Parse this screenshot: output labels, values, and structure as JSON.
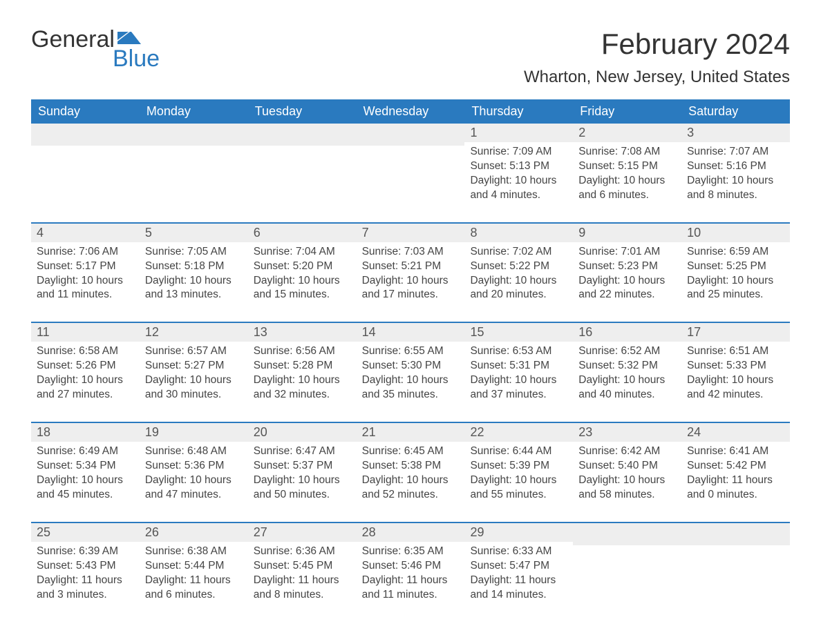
{
  "logo": {
    "word1": "General",
    "word2": "Blue",
    "text_color": "#333333",
    "accent_color": "#2a7abf"
  },
  "header": {
    "month_title": "February 2024",
    "location": "Wharton, New Jersey, United States"
  },
  "colors": {
    "header_bg": "#2a7abf",
    "header_text": "#ffffff",
    "day_number_bg": "#eeeeee",
    "row_border": "#2a7abf",
    "body_text": "#444444",
    "background": "#ffffff"
  },
  "typography": {
    "title_fontsize": 42,
    "location_fontsize": 24,
    "weekday_fontsize": 18,
    "daynum_fontsize": 18,
    "content_fontsize": 15.5
  },
  "calendar": {
    "weekdays": [
      "Sunday",
      "Monday",
      "Tuesday",
      "Wednesday",
      "Thursday",
      "Friday",
      "Saturday"
    ],
    "weeks": [
      [
        null,
        null,
        null,
        null,
        {
          "day": "1",
          "sunrise": "Sunrise: 7:09 AM",
          "sunset": "Sunset: 5:13 PM",
          "daylight": "Daylight: 10 hours and 4 minutes."
        },
        {
          "day": "2",
          "sunrise": "Sunrise: 7:08 AM",
          "sunset": "Sunset: 5:15 PM",
          "daylight": "Daylight: 10 hours and 6 minutes."
        },
        {
          "day": "3",
          "sunrise": "Sunrise: 7:07 AM",
          "sunset": "Sunset: 5:16 PM",
          "daylight": "Daylight: 10 hours and 8 minutes."
        }
      ],
      [
        {
          "day": "4",
          "sunrise": "Sunrise: 7:06 AM",
          "sunset": "Sunset: 5:17 PM",
          "daylight": "Daylight: 10 hours and 11 minutes."
        },
        {
          "day": "5",
          "sunrise": "Sunrise: 7:05 AM",
          "sunset": "Sunset: 5:18 PM",
          "daylight": "Daylight: 10 hours and 13 minutes."
        },
        {
          "day": "6",
          "sunrise": "Sunrise: 7:04 AM",
          "sunset": "Sunset: 5:20 PM",
          "daylight": "Daylight: 10 hours and 15 minutes."
        },
        {
          "day": "7",
          "sunrise": "Sunrise: 7:03 AM",
          "sunset": "Sunset: 5:21 PM",
          "daylight": "Daylight: 10 hours and 17 minutes."
        },
        {
          "day": "8",
          "sunrise": "Sunrise: 7:02 AM",
          "sunset": "Sunset: 5:22 PM",
          "daylight": "Daylight: 10 hours and 20 minutes."
        },
        {
          "day": "9",
          "sunrise": "Sunrise: 7:01 AM",
          "sunset": "Sunset: 5:23 PM",
          "daylight": "Daylight: 10 hours and 22 minutes."
        },
        {
          "day": "10",
          "sunrise": "Sunrise: 6:59 AM",
          "sunset": "Sunset: 5:25 PM",
          "daylight": "Daylight: 10 hours and 25 minutes."
        }
      ],
      [
        {
          "day": "11",
          "sunrise": "Sunrise: 6:58 AM",
          "sunset": "Sunset: 5:26 PM",
          "daylight": "Daylight: 10 hours and 27 minutes."
        },
        {
          "day": "12",
          "sunrise": "Sunrise: 6:57 AM",
          "sunset": "Sunset: 5:27 PM",
          "daylight": "Daylight: 10 hours and 30 minutes."
        },
        {
          "day": "13",
          "sunrise": "Sunrise: 6:56 AM",
          "sunset": "Sunset: 5:28 PM",
          "daylight": "Daylight: 10 hours and 32 minutes."
        },
        {
          "day": "14",
          "sunrise": "Sunrise: 6:55 AM",
          "sunset": "Sunset: 5:30 PM",
          "daylight": "Daylight: 10 hours and 35 minutes."
        },
        {
          "day": "15",
          "sunrise": "Sunrise: 6:53 AM",
          "sunset": "Sunset: 5:31 PM",
          "daylight": "Daylight: 10 hours and 37 minutes."
        },
        {
          "day": "16",
          "sunrise": "Sunrise: 6:52 AM",
          "sunset": "Sunset: 5:32 PM",
          "daylight": "Daylight: 10 hours and 40 minutes."
        },
        {
          "day": "17",
          "sunrise": "Sunrise: 6:51 AM",
          "sunset": "Sunset: 5:33 PM",
          "daylight": "Daylight: 10 hours and 42 minutes."
        }
      ],
      [
        {
          "day": "18",
          "sunrise": "Sunrise: 6:49 AM",
          "sunset": "Sunset: 5:34 PM",
          "daylight": "Daylight: 10 hours and 45 minutes."
        },
        {
          "day": "19",
          "sunrise": "Sunrise: 6:48 AM",
          "sunset": "Sunset: 5:36 PM",
          "daylight": "Daylight: 10 hours and 47 minutes."
        },
        {
          "day": "20",
          "sunrise": "Sunrise: 6:47 AM",
          "sunset": "Sunset: 5:37 PM",
          "daylight": "Daylight: 10 hours and 50 minutes."
        },
        {
          "day": "21",
          "sunrise": "Sunrise: 6:45 AM",
          "sunset": "Sunset: 5:38 PM",
          "daylight": "Daylight: 10 hours and 52 minutes."
        },
        {
          "day": "22",
          "sunrise": "Sunrise: 6:44 AM",
          "sunset": "Sunset: 5:39 PM",
          "daylight": "Daylight: 10 hours and 55 minutes."
        },
        {
          "day": "23",
          "sunrise": "Sunrise: 6:42 AM",
          "sunset": "Sunset: 5:40 PM",
          "daylight": "Daylight: 10 hours and 58 minutes."
        },
        {
          "day": "24",
          "sunrise": "Sunrise: 6:41 AM",
          "sunset": "Sunset: 5:42 PM",
          "daylight": "Daylight: 11 hours and 0 minutes."
        }
      ],
      [
        {
          "day": "25",
          "sunrise": "Sunrise: 6:39 AM",
          "sunset": "Sunset: 5:43 PM",
          "daylight": "Daylight: 11 hours and 3 minutes."
        },
        {
          "day": "26",
          "sunrise": "Sunrise: 6:38 AM",
          "sunset": "Sunset: 5:44 PM",
          "daylight": "Daylight: 11 hours and 6 minutes."
        },
        {
          "day": "27",
          "sunrise": "Sunrise: 6:36 AM",
          "sunset": "Sunset: 5:45 PM",
          "daylight": "Daylight: 11 hours and 8 minutes."
        },
        {
          "day": "28",
          "sunrise": "Sunrise: 6:35 AM",
          "sunset": "Sunset: 5:46 PM",
          "daylight": "Daylight: 11 hours and 11 minutes."
        },
        {
          "day": "29",
          "sunrise": "Sunrise: 6:33 AM",
          "sunset": "Sunset: 5:47 PM",
          "daylight": "Daylight: 11 hours and 14 minutes."
        },
        null,
        null
      ]
    ]
  }
}
